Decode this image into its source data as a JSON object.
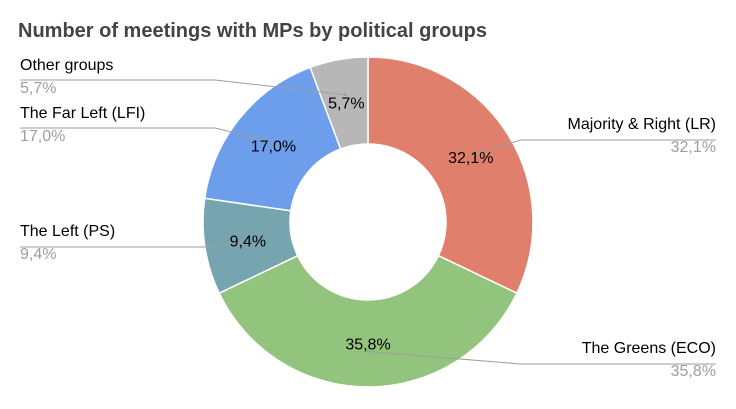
{
  "chart_data": {
    "type": "pie",
    "variant": "donut",
    "title": "Number of meetings with MPs by political groups",
    "start_angle_deg": 0,
    "direction": "clockwise",
    "legend": "none",
    "slices": [
      {
        "label": "Majority & Right (LR)",
        "value": 32.1,
        "display": "32,1%",
        "color": "#e07f6b"
      },
      {
        "label": "The Greens (ECO)",
        "value": 35.8,
        "display": "35,8%",
        "color": "#93c47d"
      },
      {
        "label": "The Left (PS)",
        "value": 9.4,
        "display": "9,4%",
        "color": "#76a5af"
      },
      {
        "label": "The Far Left (LFI)",
        "value": 17.0,
        "display": "17,0%",
        "color": "#6d9eeb"
      },
      {
        "label": "Other groups",
        "value": 5.7,
        "display": "5,7%",
        "color": "#b7b7b7"
      }
    ]
  }
}
